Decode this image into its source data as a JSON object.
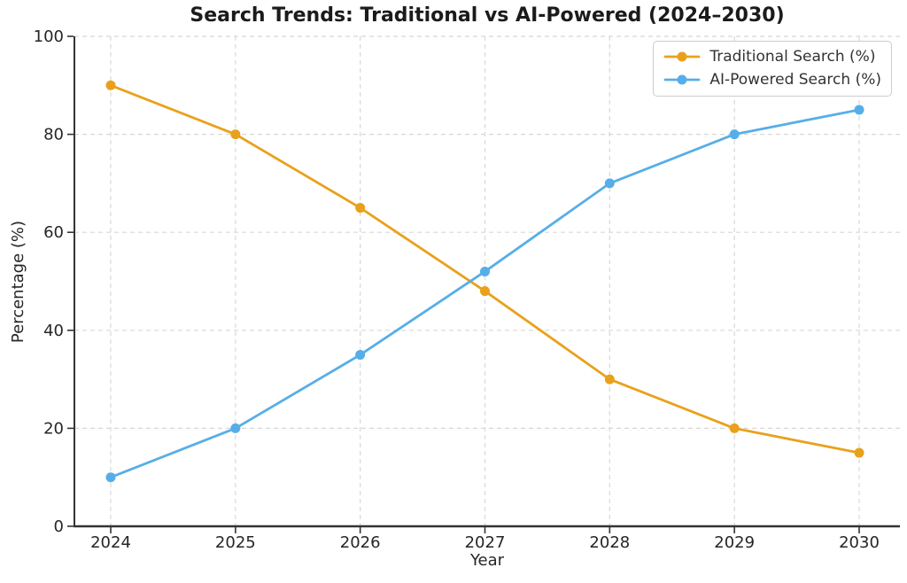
{
  "figure": {
    "background": "#ffffff",
    "title_color": "#1b1b1b",
    "text_color": "#262626",
    "spine_color": "#333333",
    "tick_color": "#333333",
    "grid_color": "#d8d8d8",
    "legend_border_color": "#cccccc"
  },
  "chart_data": {
    "type": "line",
    "title": "Search Trends: Traditional vs AI-Powered (2024–2030)",
    "xlabel": "Year",
    "ylabel": "Percentage (%)",
    "categories": [
      "2024",
      "2025",
      "2026",
      "2027",
      "2028",
      "2029",
      "2030"
    ],
    "series": [
      {
        "name": "Traditional Search (%)",
        "color": "#E9A11B",
        "marker": "circle",
        "values": [
          90,
          80,
          65,
          48,
          30,
          20,
          15
        ]
      },
      {
        "name": "AI-Powered Search (%)",
        "color": "#56AEE8",
        "marker": "circle",
        "values": [
          10,
          20,
          35,
          52,
          70,
          80,
          85
        ]
      }
    ],
    "ylim": [
      0,
      100
    ],
    "yticks": [
      0,
      20,
      40,
      60,
      80,
      100
    ],
    "grid": true,
    "grid_style": "dashed",
    "legend_position": "upper right"
  }
}
